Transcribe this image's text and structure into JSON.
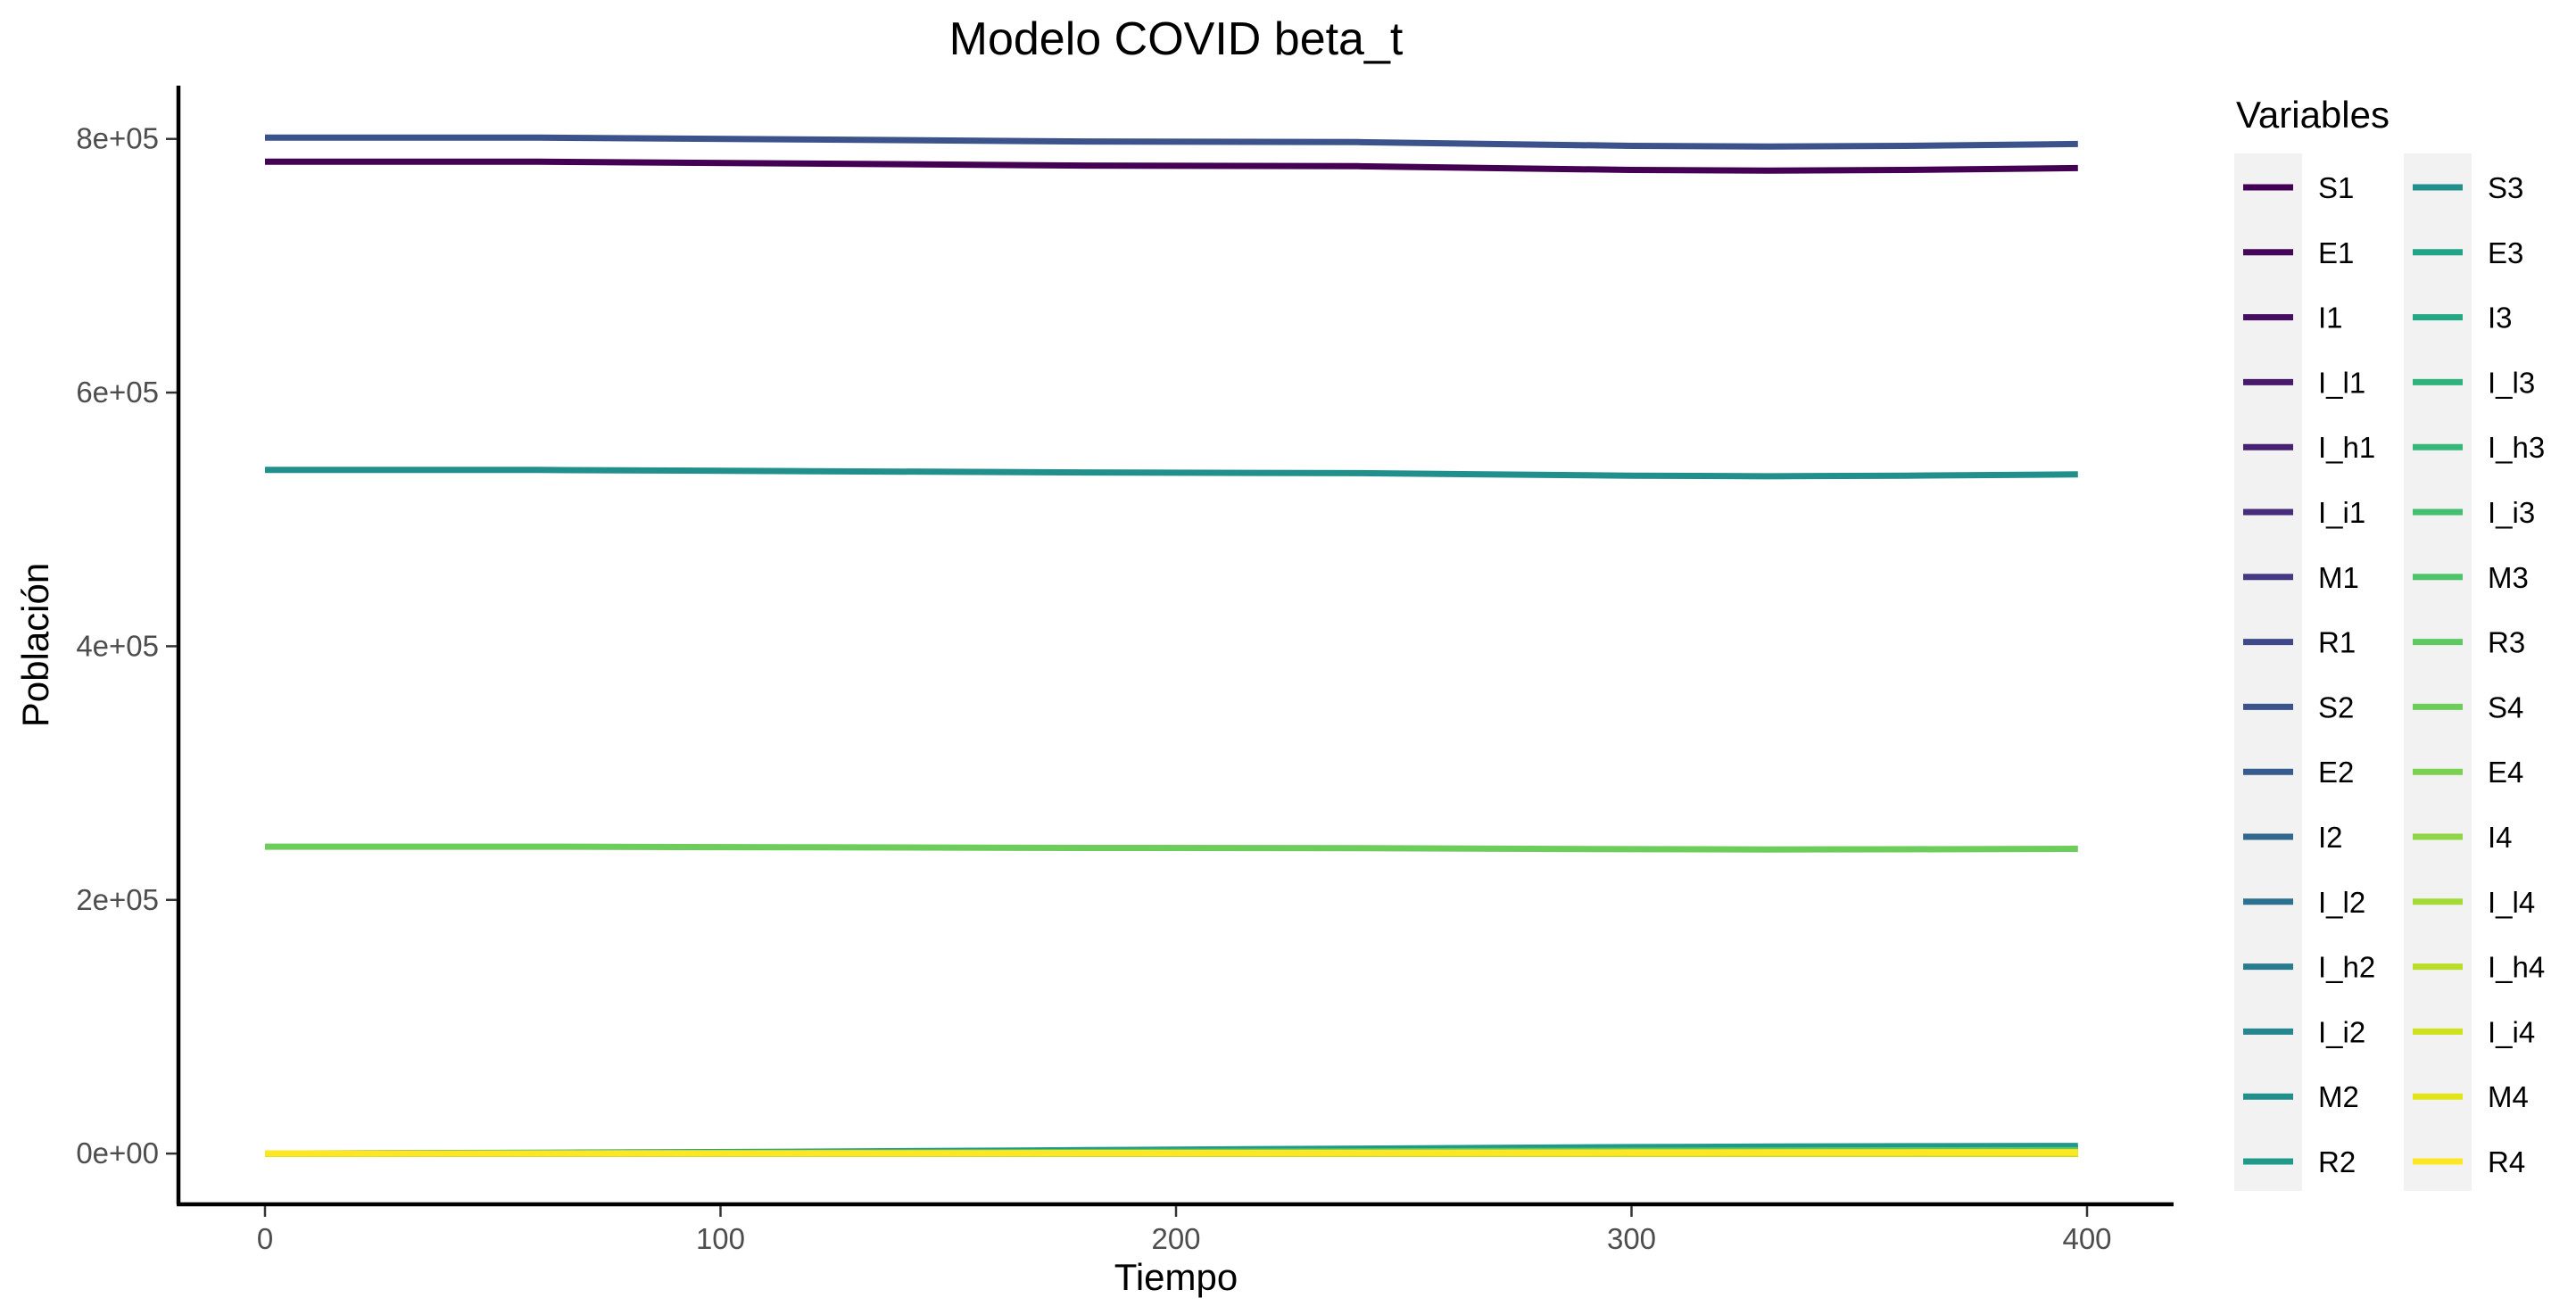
{
  "chart_data": {
    "type": "line",
    "title": "Modelo COVID beta_t",
    "xlabel": "Tiempo",
    "ylabel": "Población",
    "xlim": [
      -19,
      419
    ],
    "ylim": [
      -40000,
      842000
    ],
    "x_ticks": [
      0,
      100,
      200,
      300,
      400
    ],
    "x_tick_labels": [
      "0",
      "100",
      "200",
      "300",
      "400"
    ],
    "y_ticks": [
      0,
      200000,
      400000,
      600000,
      800000
    ],
    "y_tick_labels": [
      "0e+00",
      "2e+05",
      "4e+05",
      "6e+05",
      "8e+05"
    ],
    "grid": false,
    "legend_title": "Variables",
    "legend_position": "right",
    "x": [
      0,
      60,
      120,
      180,
      240,
      300,
      330,
      360,
      398
    ],
    "series": [
      {
        "name": "S1",
        "color": "#440154",
        "values": [
          782000,
          782000,
          780500,
          779000,
          778500,
          775500,
          775000,
          775500,
          777000
        ]
      },
      {
        "name": "E1",
        "color": "#45065A",
        "values": [
          0,
          0,
          0,
          0,
          0,
          0,
          0,
          0,
          0
        ]
      },
      {
        "name": "I1",
        "color": "#470D60",
        "values": [
          0,
          0,
          0,
          0,
          0,
          0,
          0,
          0,
          0
        ]
      },
      {
        "name": "I_l1",
        "color": "#481A6C",
        "values": [
          0,
          0,
          0,
          0,
          0,
          0,
          0,
          0,
          0
        ]
      },
      {
        "name": "I_h1",
        "color": "#482173",
        "values": [
          0,
          0,
          0,
          0,
          0,
          0,
          0,
          0,
          0
        ]
      },
      {
        "name": "I_i1",
        "color": "#472D7B",
        "values": [
          0,
          0,
          0,
          0,
          0,
          0,
          0,
          0,
          0
        ]
      },
      {
        "name": "M1",
        "color": "#443A83",
        "values": [
          0,
          0,
          0,
          0,
          0,
          0,
          0,
          0,
          0
        ]
      },
      {
        "name": "R1",
        "color": "#3F4889",
        "values": [
          0,
          400,
          1000,
          1800,
          2600,
          3400,
          3700,
          3900,
          4000
        ]
      },
      {
        "name": "S2",
        "color": "#3B528B",
        "values": [
          801000,
          801000,
          799500,
          798000,
          797500,
          794500,
          794000,
          794500,
          796000
        ]
      },
      {
        "name": "E2",
        "color": "#365C8D",
        "values": [
          0,
          0,
          0,
          0,
          0,
          0,
          0,
          0,
          0
        ]
      },
      {
        "name": "I2",
        "color": "#31688E",
        "values": [
          0,
          0,
          0,
          0,
          0,
          0,
          0,
          0,
          0
        ]
      },
      {
        "name": "I_l2",
        "color": "#2C728E",
        "values": [
          0,
          0,
          0,
          0,
          0,
          0,
          0,
          0,
          0
        ]
      },
      {
        "name": "I_h2",
        "color": "#287C8E",
        "values": [
          0,
          0,
          0,
          0,
          0,
          0,
          0,
          0,
          0
        ]
      },
      {
        "name": "I_i2",
        "color": "#24868E",
        "values": [
          0,
          0,
          0,
          0,
          0,
          0,
          0,
          0,
          0
        ]
      },
      {
        "name": "M2",
        "color": "#21908C",
        "values": [
          0,
          0,
          0,
          0,
          0,
          0,
          0,
          0,
          0
        ]
      },
      {
        "name": "R2",
        "color": "#1F998A",
        "values": [
          0,
          600,
          1500,
          2700,
          3900,
          5100,
          5500,
          5800,
          6000
        ]
      },
      {
        "name": "S3",
        "color": "#21908D",
        "values": [
          539000,
          539000,
          538000,
          537000,
          536500,
          534500,
          534000,
          534500,
          535500
        ]
      },
      {
        "name": "E3",
        "color": "#20A386",
        "values": [
          0,
          0,
          0,
          0,
          0,
          0,
          0,
          0,
          0
        ]
      },
      {
        "name": "I3",
        "color": "#22A884",
        "values": [
          0,
          0,
          0,
          0,
          0,
          0,
          0,
          0,
          0
        ]
      },
      {
        "name": "I_l3",
        "color": "#2EB37C",
        "values": [
          0,
          0,
          0,
          0,
          0,
          0,
          0,
          0,
          0
        ]
      },
      {
        "name": "I_h3",
        "color": "#35B779",
        "values": [
          0,
          0,
          0,
          0,
          0,
          0,
          0,
          0,
          0
        ]
      },
      {
        "name": "I_i3",
        "color": "#44BF70",
        "values": [
          0,
          0,
          0,
          0,
          0,
          0,
          0,
          0,
          0
        ]
      },
      {
        "name": "M3",
        "color": "#4FC46A",
        "values": [
          0,
          0,
          0,
          0,
          0,
          0,
          0,
          0,
          0
        ]
      },
      {
        "name": "R3",
        "color": "#5EC962",
        "values": [
          0,
          300,
          700,
          1200,
          1700,
          2200,
          2400,
          2550,
          2650
        ]
      },
      {
        "name": "S4",
        "color": "#6CCD5A",
        "values": [
          242000,
          242000,
          241500,
          241000,
          240800,
          240000,
          239800,
          239900,
          240300
        ]
      },
      {
        "name": "E4",
        "color": "#7AD151",
        "values": [
          0,
          0,
          0,
          0,
          0,
          0,
          0,
          0,
          0
        ]
      },
      {
        "name": "I4",
        "color": "#8ED645",
        "values": [
          0,
          0,
          0,
          0,
          0,
          0,
          0,
          0,
          0
        ]
      },
      {
        "name": "I_l4",
        "color": "#A2DA37",
        "values": [
          0,
          0,
          0,
          0,
          0,
          0,
          0,
          0,
          0
        ]
      },
      {
        "name": "I_h4",
        "color": "#B8DE29",
        "values": [
          0,
          0,
          0,
          0,
          0,
          0,
          0,
          0,
          0
        ]
      },
      {
        "name": "I_i4",
        "color": "#CDE11D",
        "values": [
          0,
          0,
          0,
          0,
          0,
          0,
          0,
          0,
          0
        ]
      },
      {
        "name": "M4",
        "color": "#E2E418",
        "values": [
          0,
          0,
          0,
          0,
          0,
          0,
          0,
          0,
          0
        ]
      },
      {
        "name": "R4",
        "color": "#FDE725",
        "values": [
          0,
          100,
          250,
          450,
          650,
          850,
          950,
          1000,
          1050
        ]
      }
    ]
  }
}
